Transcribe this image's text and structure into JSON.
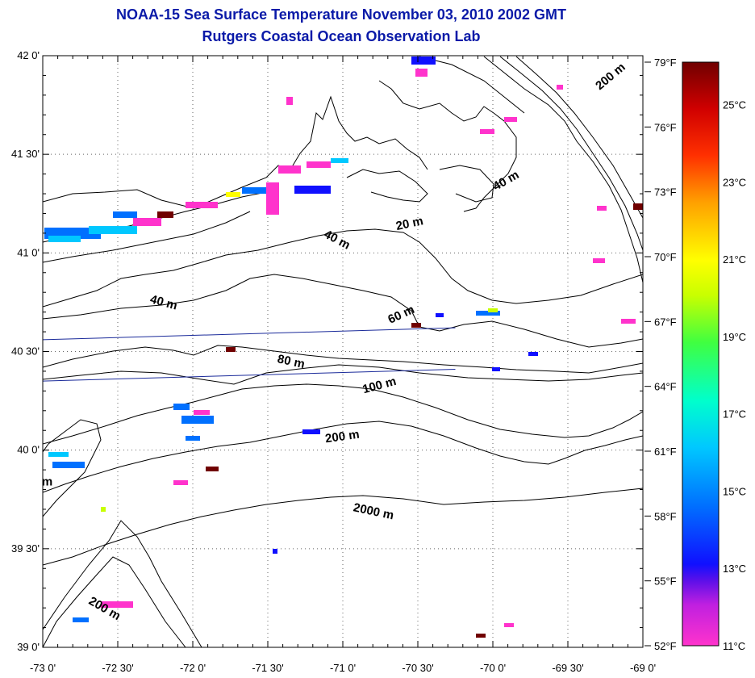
{
  "title": "NOAA-15 Sea Surface Temperature November 03, 2010 2002 GMT",
  "subtitle": "Rutgers Coastal Ocean Observation Lab",
  "map": {
    "lat_range": [
      39.0,
      42.0
    ],
    "lon_range": [
      -73.0,
      -69.0
    ],
    "grid": true,
    "lat_ticks": [
      {
        "value": 42.0,
        "label": "42 0'"
      },
      {
        "value": 41.5,
        "label": "41 30'"
      },
      {
        "value": 41.0,
        "label": "41 0'"
      },
      {
        "value": 40.5,
        "label": "40 30'"
      },
      {
        "value": 40.0,
        "label": "40 0'"
      },
      {
        "value": 39.5,
        "label": "39 30'"
      },
      {
        "value": 39.0,
        "label": "39 0'"
      }
    ],
    "lon_ticks": [
      {
        "value": -73.0,
        "label": "-73 0'"
      },
      {
        "value": -72.5,
        "label": "-72 30'"
      },
      {
        "value": -72.0,
        "label": "-72 0'"
      },
      {
        "value": -71.5,
        "label": "-71 30'"
      },
      {
        "value": -71.0,
        "label": "-71 0'"
      },
      {
        "value": -70.5,
        "label": "-70 30'"
      },
      {
        "value": -70.0,
        "label": "-70 0'"
      },
      {
        "value": -69.5,
        "label": "-69 30'"
      },
      {
        "value": -69.0,
        "label": "-69 0'"
      }
    ],
    "contour_labels": [
      {
        "text": "200 m",
        "lon": -69.2,
        "lat": 41.88,
        "angle": 40
      },
      {
        "text": "40 m",
        "lon": -69.9,
        "lat": 41.35,
        "angle": 30
      },
      {
        "text": "20 m",
        "lon": -70.55,
        "lat": 41.13,
        "angle": 12
      },
      {
        "text": "40 m",
        "lon": -71.05,
        "lat": 41.05,
        "angle": -28
      },
      {
        "text": "40 m",
        "lon": -72.2,
        "lat": 40.73,
        "angle": -15
      },
      {
        "text": "60 m",
        "lon": -70.6,
        "lat": 40.67,
        "angle": 25
      },
      {
        "text": "80 m",
        "lon": -71.35,
        "lat": 40.43,
        "angle": -12
      },
      {
        "text": "100 m",
        "lon": -70.75,
        "lat": 40.31,
        "angle": 15
      },
      {
        "text": "200 m",
        "lon": -71.0,
        "lat": 40.05,
        "angle": 8
      },
      {
        "text": "2000 m",
        "lon": -70.8,
        "lat": 39.67,
        "angle": -12
      },
      {
        "text": "200 m",
        "lon": -72.6,
        "lat": 39.18,
        "angle": -30
      },
      {
        "text": "m",
        "lon": -72.97,
        "lat": 39.82,
        "angle": 0
      }
    ],
    "tracks": [
      {
        "from": [
          -73.0,
          40.56
        ],
        "to": [
          -70.25,
          40.62
        ]
      },
      {
        "from": [
          -73.0,
          40.35
        ],
        "to": [
          -70.25,
          40.41
        ]
      }
    ]
  },
  "colorbar": {
    "f_range": [
      52,
      79
    ],
    "c_range": [
      11,
      26.1
    ],
    "f_labels": [
      {
        "value": 79,
        "label": "79°F"
      },
      {
        "value": 76,
        "label": "76°F"
      },
      {
        "value": 73,
        "label": "73°F"
      },
      {
        "value": 70,
        "label": "70°F"
      },
      {
        "value": 67,
        "label": "67°F"
      },
      {
        "value": 64,
        "label": "64°F"
      },
      {
        "value": 61,
        "label": "61°F"
      },
      {
        "value": 58,
        "label": "58°F"
      },
      {
        "value": 55,
        "label": "55°F"
      },
      {
        "value": 52,
        "label": "52°F"
      }
    ],
    "c_labels": [
      {
        "value": 25,
        "label": "25°C"
      },
      {
        "value": 23,
        "label": "23°C"
      },
      {
        "value": 21,
        "label": "21°C"
      },
      {
        "value": 19,
        "label": "19°C"
      },
      {
        "value": 17,
        "label": "17°C"
      },
      {
        "value": 15,
        "label": "15°C"
      },
      {
        "value": 13,
        "label": "13°C"
      },
      {
        "value": 11,
        "label": "11°C"
      }
    ],
    "colors": [
      "#ff33cc",
      "#c020e0",
      "#7a10e8",
      "#1010ff",
      "#0070ff",
      "#00c8ff",
      "#00ffcc",
      "#40ff40",
      "#c8ff00",
      "#ffff00",
      "#ffa000",
      "#ff3000",
      "#d00000",
      "#700000"
    ]
  }
}
